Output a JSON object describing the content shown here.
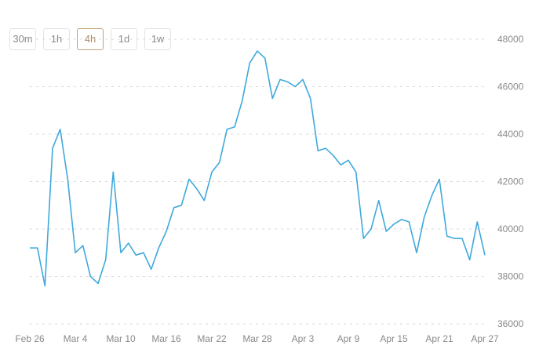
{
  "intervals": {
    "items": [
      "30m",
      "1h",
      "4h",
      "1d",
      "1w"
    ],
    "active": "4h"
  },
  "chart_data": {
    "type": "line",
    "title": "",
    "xlabel": "",
    "ylabel": "",
    "ylim": [
      36000,
      48000
    ],
    "yticks": [
      36000,
      38000,
      40000,
      42000,
      44000,
      46000,
      48000
    ],
    "xtick_labels": [
      "Feb 26",
      "Mar 4",
      "Mar 10",
      "Mar 16",
      "Mar 22",
      "Mar 28",
      "Apr 3",
      "Apr 9",
      "Apr 15",
      "Apr 21",
      "Apr 27"
    ],
    "grid": "horizontal-dashed",
    "legend": "none",
    "color": "#3fa9dc",
    "series": [
      {
        "x": [
          "2022-02-26",
          "2022-02-27",
          "2022-02-28",
          "2022-03-01",
          "2022-03-02",
          "2022-03-03",
          "2022-03-04",
          "2022-03-05",
          "2022-03-06",
          "2022-03-07",
          "2022-03-08",
          "2022-03-09",
          "2022-03-10",
          "2022-03-11",
          "2022-03-12",
          "2022-03-13",
          "2022-03-14",
          "2022-03-15",
          "2022-03-16",
          "2022-03-17",
          "2022-03-18",
          "2022-03-19",
          "2022-03-20",
          "2022-03-21",
          "2022-03-22",
          "2022-03-23",
          "2022-03-24",
          "2022-03-25",
          "2022-03-26",
          "2022-03-27",
          "2022-03-28",
          "2022-03-29",
          "2022-03-30",
          "2022-03-31",
          "2022-04-01",
          "2022-04-02",
          "2022-04-03",
          "2022-04-04",
          "2022-04-05",
          "2022-04-06",
          "2022-04-07",
          "2022-04-08",
          "2022-04-09",
          "2022-04-10",
          "2022-04-11",
          "2022-04-12",
          "2022-04-13",
          "2022-04-14",
          "2022-04-15",
          "2022-04-16",
          "2022-04-17",
          "2022-04-18",
          "2022-04-19",
          "2022-04-20",
          "2022-04-21",
          "2022-04-22",
          "2022-04-23",
          "2022-04-24",
          "2022-04-25",
          "2022-04-26",
          "2022-04-27"
        ],
        "values": [
          39200,
          39200,
          37600,
          43400,
          44200,
          42100,
          39000,
          39300,
          38000,
          37700,
          38700,
          42400,
          39000,
          39400,
          38900,
          39000,
          38300,
          39200,
          39900,
          40900,
          41000,
          42100,
          41700,
          41200,
          42400,
          42800,
          44200,
          44300,
          45400,
          47000,
          47500,
          47200,
          45500,
          46300,
          46200,
          46000,
          46300,
          45500,
          43300,
          43400,
          43100,
          42700,
          42900,
          42400,
          39600,
          40000,
          41200,
          39900,
          40200,
          40400,
          40300,
          39000,
          40500,
          41400,
          42100,
          39700,
          39600,
          39600,
          38700,
          40300,
          38900
        ]
      }
    ]
  }
}
